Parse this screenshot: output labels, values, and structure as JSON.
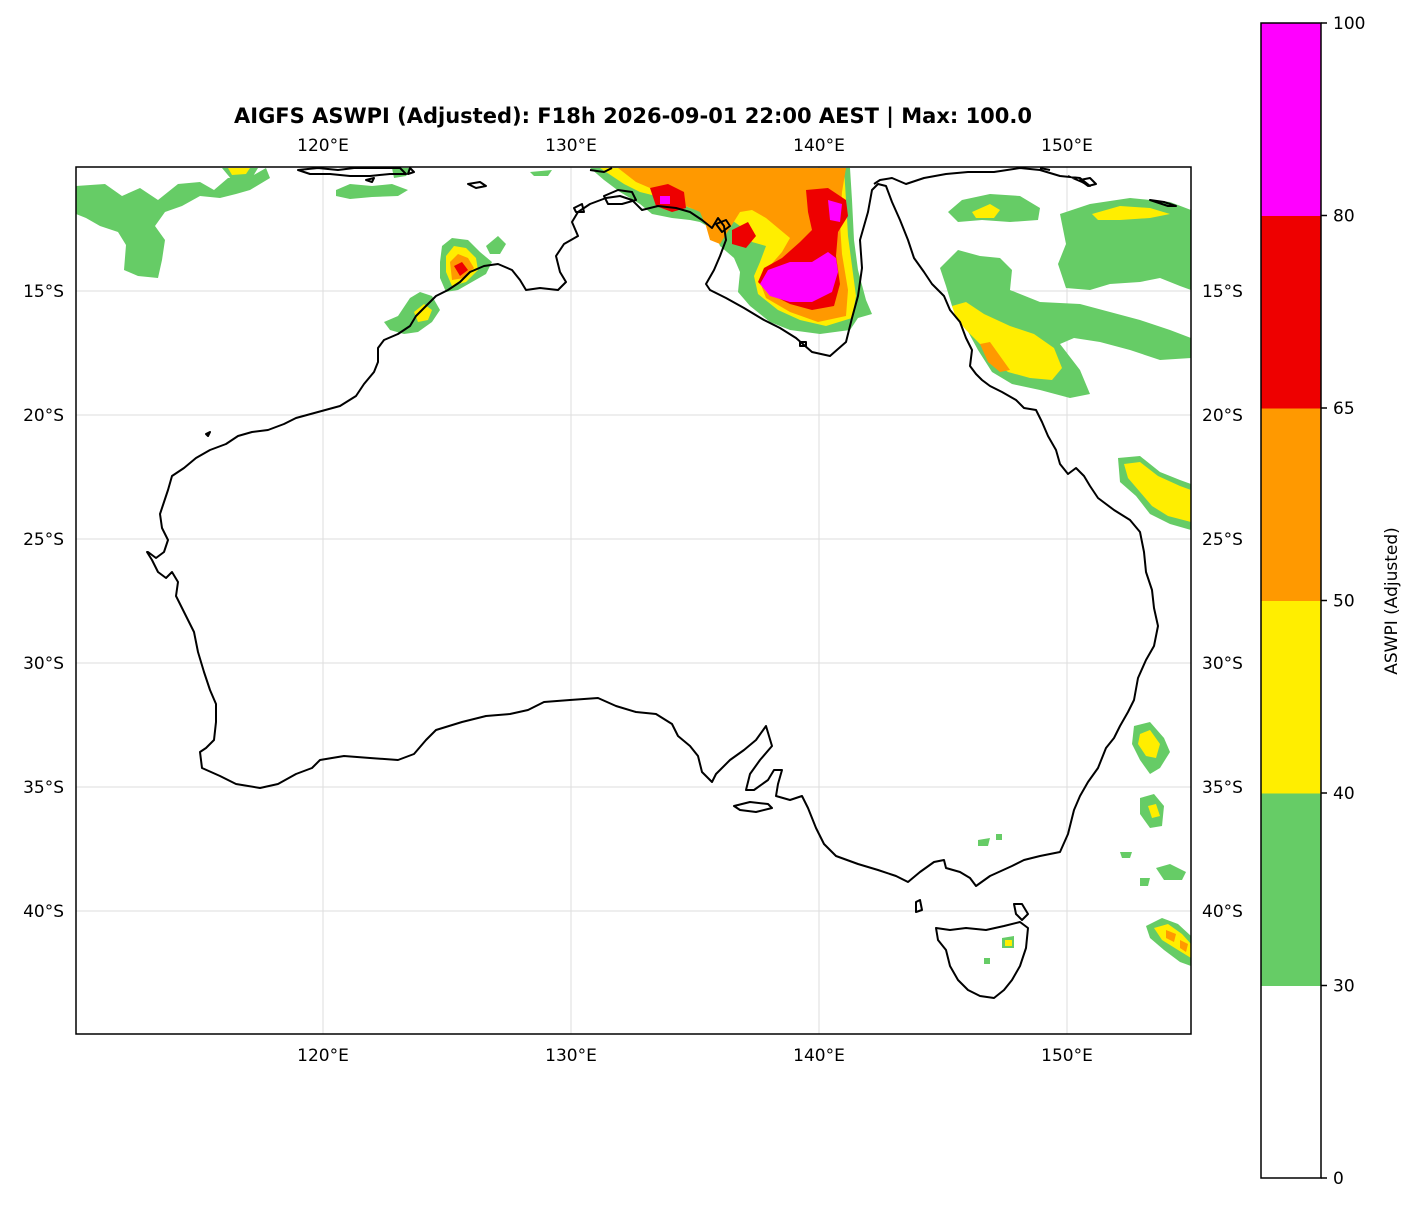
{
  "title": "AIGFS ASWPI (Adjusted): F18h 2026-09-01 22:00 AEST | Max: 100.0",
  "map": {
    "lon_ticks": [
      "120°E",
      "130°E",
      "140°E",
      "150°E"
    ],
    "lat_ticks": [
      "15°S",
      "20°S",
      "25°S",
      "30°S",
      "35°S",
      "40°S"
    ]
  },
  "colorbar": {
    "label": "ASWPI (Adjusted)",
    "ticks": [
      "0",
      "30",
      "40",
      "50",
      "65",
      "80",
      "100"
    ],
    "colors": [
      "#ffffff",
      "#66cc66",
      "#ffee00",
      "#ff9900",
      "#ee0000",
      "#ff00ff"
    ]
  }
}
